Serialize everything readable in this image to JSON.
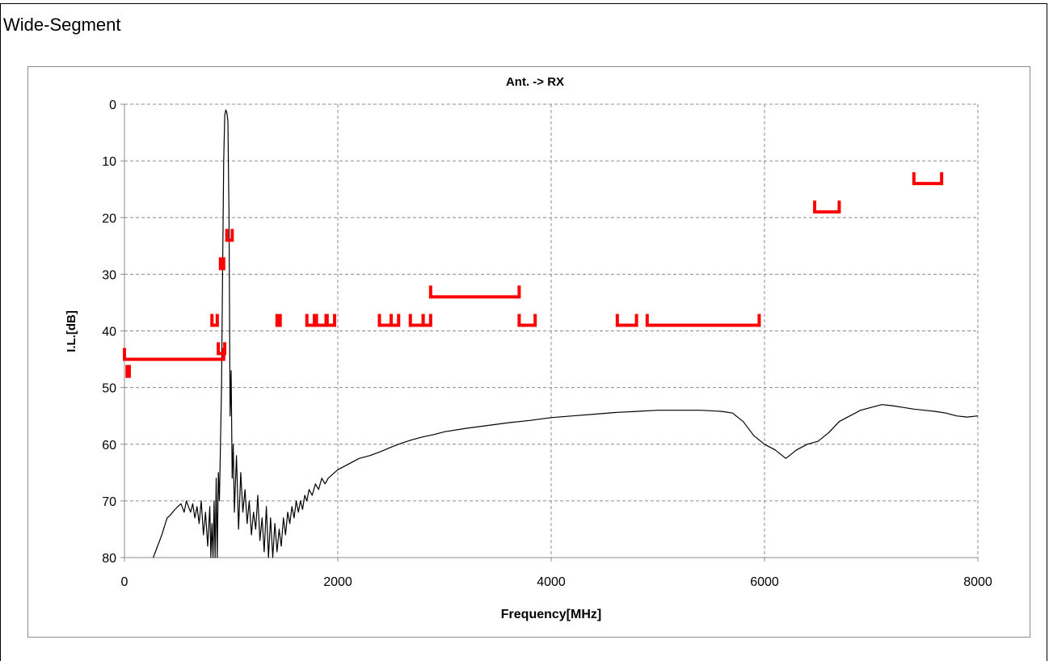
{
  "page": {
    "heading": "Wide-Segment"
  },
  "colors": {
    "measurement": "#000000",
    "spec_limit": "#ff0000",
    "grid": "#8c8c8c"
  },
  "chart_data": {
    "type": "line",
    "title": "Ant. -> RX",
    "xlabel": "Frequency[MHz]",
    "ylabel": "I.L.[dB]",
    "xlim": [
      0,
      8000
    ],
    "ylim": [
      0,
      80
    ],
    "y_inverted": true,
    "x_ticks": [
      "0",
      "2000",
      "4000",
      "6000",
      "8000"
    ],
    "y_ticks": [
      "0",
      "10",
      "20",
      "30",
      "40",
      "50",
      "60",
      "70",
      "80"
    ],
    "grid": true,
    "legend": "none",
    "series": [
      {
        "style": "line",
        "points": [
          [
            270,
            80
          ],
          [
            300,
            78.5
          ],
          [
            350,
            76
          ],
          [
            400,
            73
          ],
          [
            430,
            72.5
          ],
          [
            460,
            71.8
          ],
          [
            500,
            71
          ],
          [
            530,
            70.5
          ],
          [
            560,
            72
          ],
          [
            580,
            70
          ],
          [
            620,
            72
          ],
          [
            640,
            70.5
          ],
          [
            660,
            73
          ],
          [
            680,
            71
          ],
          [
            700,
            74
          ],
          [
            720,
            70
          ],
          [
            740,
            76
          ],
          [
            760,
            72
          ],
          [
            780,
            78
          ],
          [
            800,
            71
          ],
          [
            810,
            80
          ],
          [
            820,
            74
          ],
          [
            830,
            80
          ],
          [
            840,
            70
          ],
          [
            850,
            80
          ],
          [
            860,
            66
          ],
          [
            870,
            80
          ],
          [
            880,
            65
          ],
          [
            890,
            70
          ],
          [
            900,
            60
          ],
          [
            910,
            50
          ],
          [
            920,
            30
          ],
          [
            930,
            10
          ],
          [
            940,
            2
          ],
          [
            950,
            1
          ],
          [
            960,
            1.5
          ],
          [
            970,
            3
          ],
          [
            980,
            20
          ],
          [
            990,
            55
          ],
          [
            1000,
            47
          ],
          [
            1010,
            66
          ],
          [
            1020,
            60
          ],
          [
            1030,
            72
          ],
          [
            1050,
            62
          ],
          [
            1070,
            75
          ],
          [
            1090,
            65
          ],
          [
            1110,
            72
          ],
          [
            1130,
            68
          ],
          [
            1150,
            74
          ],
          [
            1170,
            70
          ],
          [
            1190,
            76
          ],
          [
            1210,
            72
          ],
          [
            1230,
            75
          ],
          [
            1250,
            69
          ],
          [
            1270,
            77
          ],
          [
            1290,
            73
          ],
          [
            1310,
            79
          ],
          [
            1330,
            71
          ],
          [
            1350,
            80
          ],
          [
            1370,
            73
          ],
          [
            1390,
            80
          ],
          [
            1410,
            74
          ],
          [
            1430,
            79
          ],
          [
            1450,
            75
          ],
          [
            1470,
            78
          ],
          [
            1490,
            73
          ],
          [
            1510,
            76
          ],
          [
            1530,
            72
          ],
          [
            1550,
            74
          ],
          [
            1570,
            71
          ],
          [
            1590,
            73
          ],
          [
            1610,
            70
          ],
          [
            1630,
            72
          ],
          [
            1650,
            70
          ],
          [
            1670,
            71.5
          ],
          [
            1690,
            69
          ],
          [
            1710,
            70
          ],
          [
            1730,
            68
          ],
          [
            1760,
            69
          ],
          [
            1790,
            67
          ],
          [
            1820,
            68
          ],
          [
            1850,
            66
          ],
          [
            1880,
            67
          ],
          [
            1910,
            66
          ],
          [
            1940,
            65.5
          ],
          [
            1970,
            65
          ],
          [
            2000,
            64.5
          ],
          [
            2050,
            64
          ],
          [
            2100,
            63.5
          ],
          [
            2150,
            63
          ],
          [
            2200,
            62.5
          ],
          [
            2300,
            62
          ],
          [
            2400,
            61.3
          ],
          [
            2500,
            60.5
          ],
          [
            2600,
            59.8
          ],
          [
            2700,
            59.2
          ],
          [
            2800,
            58.7
          ],
          [
            2900,
            58.3
          ],
          [
            3000,
            57.8
          ],
          [
            3200,
            57.2
          ],
          [
            3400,
            56.7
          ],
          [
            3600,
            56.2
          ],
          [
            3800,
            55.8
          ],
          [
            4000,
            55.3
          ],
          [
            4200,
            55
          ],
          [
            4400,
            54.7
          ],
          [
            4600,
            54.4
          ],
          [
            4800,
            54.2
          ],
          [
            5000,
            54
          ],
          [
            5200,
            54
          ],
          [
            5400,
            54
          ],
          [
            5600,
            54.2
          ],
          [
            5700,
            54.5
          ],
          [
            5800,
            56
          ],
          [
            5900,
            58.5
          ],
          [
            6000,
            60
          ],
          [
            6100,
            61
          ],
          [
            6200,
            62.5
          ],
          [
            6300,
            61
          ],
          [
            6400,
            60
          ],
          [
            6500,
            59.5
          ],
          [
            6600,
            58
          ],
          [
            6700,
            56
          ],
          [
            6800,
            55
          ],
          [
            6900,
            54
          ],
          [
            7000,
            53.5
          ],
          [
            7100,
            53
          ],
          [
            7200,
            53.2
          ],
          [
            7300,
            53.5
          ],
          [
            7400,
            53.8
          ],
          [
            7500,
            54
          ],
          [
            7600,
            54.2
          ],
          [
            7700,
            54.5
          ],
          [
            7800,
            55
          ],
          [
            7900,
            55.2
          ],
          [
            8000,
            55
          ]
        ]
      }
    ],
    "spec_limits": [
      {
        "x1": 0,
        "x2": 930,
        "y": 45
      },
      {
        "x1": 25,
        "x2": 45,
        "y": 48
      },
      {
        "x1": 820,
        "x2": 870,
        "y": 39
      },
      {
        "x1": 880,
        "x2": 940,
        "y": 44
      },
      {
        "x1": 900,
        "x2": 930,
        "y": 29
      },
      {
        "x1": 960,
        "x2": 1010,
        "y": 24
      },
      {
        "x1": 1430,
        "x2": 1460,
        "y": 39
      },
      {
        "x1": 1710,
        "x2": 1780,
        "y": 39
      },
      {
        "x1": 1800,
        "x2": 1890,
        "y": 39
      },
      {
        "x1": 1900,
        "x2": 1970,
        "y": 39
      },
      {
        "x1": 2390,
        "x2": 2500,
        "y": 39
      },
      {
        "x1": 2500,
        "x2": 2570,
        "y": 39
      },
      {
        "x1": 2680,
        "x2": 2800,
        "y": 39
      },
      {
        "x1": 2800,
        "x2": 2870,
        "y": 39
      },
      {
        "x1": 2870,
        "x2": 3700,
        "y": 34
      },
      {
        "x1": 3700,
        "x2": 3850,
        "y": 39
      },
      {
        "x1": 4620,
        "x2": 4800,
        "y": 39
      },
      {
        "x1": 4900,
        "x2": 5950,
        "y": 39
      },
      {
        "x1": 6470,
        "x2": 6700,
        "y": 19
      },
      {
        "x1": 7400,
        "x2": 7660,
        "y": 14
      }
    ]
  }
}
